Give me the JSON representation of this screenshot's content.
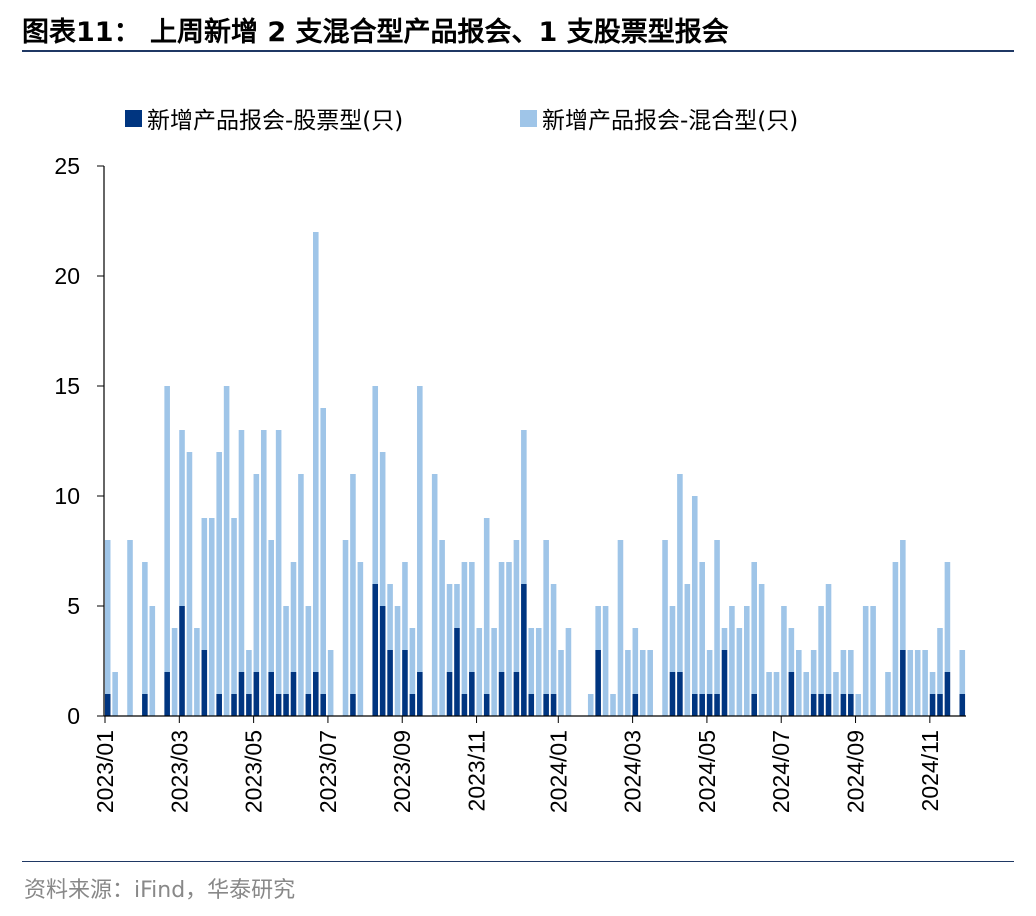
{
  "header": {
    "title": "图表11：  上周新增 2 支混合型产品报会、1 支股票型报会"
  },
  "footer": {
    "source": "资料来源：iFind，华泰研究"
  },
  "chart_data": {
    "type": "bar",
    "stacked": true,
    "title": "",
    "xlabel": "",
    "ylabel": "",
    "ylim": [
      0,
      25
    ],
    "yticks": [
      0,
      5,
      10,
      15,
      20,
      25
    ],
    "xtick_labels": [
      "2023/01",
      "2023/03",
      "2023/05",
      "2023/07",
      "2023/09",
      "2023/11",
      "2024/01",
      "2024/03",
      "2024/05",
      "2024/07",
      "2024/09",
      "2024/11"
    ],
    "legend_position": "top",
    "grid": false,
    "colors": {
      "stock": "#003580",
      "mixed": "#9fc5e8"
    },
    "series": [
      {
        "name": "新增产品报会-股票型(只)",
        "values": [
          1,
          0,
          0,
          0,
          0,
          1,
          0,
          0,
          2,
          0,
          5,
          0,
          0,
          3,
          0,
          1,
          0,
          1,
          2,
          1,
          2,
          0,
          2,
          1,
          1,
          2,
          0,
          1,
          2,
          1,
          0,
          0,
          0,
          1,
          0,
          0,
          6,
          5,
          3,
          0,
          3,
          1,
          2,
          0,
          0,
          0,
          2,
          4,
          1,
          2,
          0,
          1,
          0,
          2,
          0,
          2,
          6,
          1,
          0,
          1,
          1,
          0,
          0,
          0,
          0,
          0,
          3,
          0,
          0,
          0,
          0,
          1,
          0,
          0,
          0,
          0,
          2,
          2,
          0,
          1,
          1,
          1,
          1,
          3,
          0,
          0,
          0,
          1,
          0,
          0,
          0,
          0,
          2,
          0,
          0,
          1,
          1,
          1,
          0,
          1,
          1,
          0,
          0,
          0,
          0,
          0,
          0,
          3,
          0,
          0,
          0,
          1,
          1,
          2,
          0,
          1
        ]
      },
      {
        "name": "新增产品报会-混合型(只)",
        "values": [
          7,
          2,
          0,
          8,
          0,
          6,
          5,
          0,
          13,
          4,
          8,
          12,
          4,
          6,
          9,
          11,
          15,
          8,
          11,
          2,
          9,
          13,
          6,
          12,
          4,
          5,
          11,
          4,
          20,
          13,
          3,
          0,
          8,
          10,
          7,
          0,
          9,
          7,
          3,
          5,
          4,
          3,
          13,
          0,
          11,
          8,
          4,
          2,
          6,
          5,
          4,
          8,
          4,
          5,
          7,
          6,
          7,
          3,
          4,
          7,
          5,
          3,
          4,
          0,
          0,
          1,
          2,
          5,
          1,
          8,
          3,
          3,
          3,
          3,
          0,
          8,
          3,
          9,
          6,
          9,
          6,
          2,
          7,
          1,
          5,
          4,
          5,
          6,
          6,
          2,
          2,
          5,
          2,
          3,
          2,
          2,
          4,
          5,
          2,
          2,
          2,
          1,
          5,
          5,
          0,
          2,
          7,
          5,
          3,
          3,
          3,
          1,
          3,
          5,
          0,
          2
        ]
      }
    ]
  }
}
